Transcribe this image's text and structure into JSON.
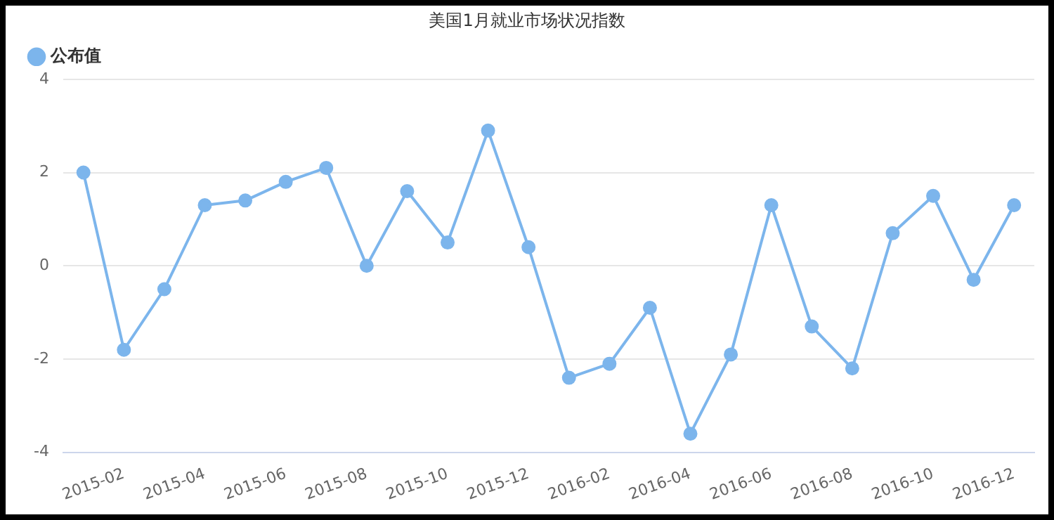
{
  "chart_data": {
    "type": "line",
    "title": "美国1月就业市场状况指数",
    "categories": [
      null,
      "2015-02",
      null,
      "2015-04",
      null,
      "2015-06",
      null,
      "2015-08",
      null,
      "2015-10",
      null,
      "2015-12",
      null,
      "2016-02",
      null,
      "2016-04",
      null,
      "2016-06",
      null,
      "2016-08",
      null,
      "2016-10",
      null,
      "2016-12"
    ],
    "series": [
      {
        "name": "公布值",
        "color": "#7cb5ec",
        "values": [
          2.0,
          -1.8,
          -0.5,
          1.3,
          1.4,
          1.8,
          2.1,
          0,
          1.6,
          0.5,
          2.9,
          0.4,
          -2.4,
          -2.1,
          -0.9,
          -3.6,
          -1.9,
          1.3,
          -1.3,
          -2.2,
          0.7,
          1.5,
          -0.3,
          1.3
        ]
      }
    ],
    "ylim": [
      -4,
      4
    ],
    "yticks": [
      -4,
      -2,
      0,
      2,
      4
    ],
    "grid": "y",
    "legend": "top left",
    "marker": "circle",
    "line_style": "solid"
  }
}
